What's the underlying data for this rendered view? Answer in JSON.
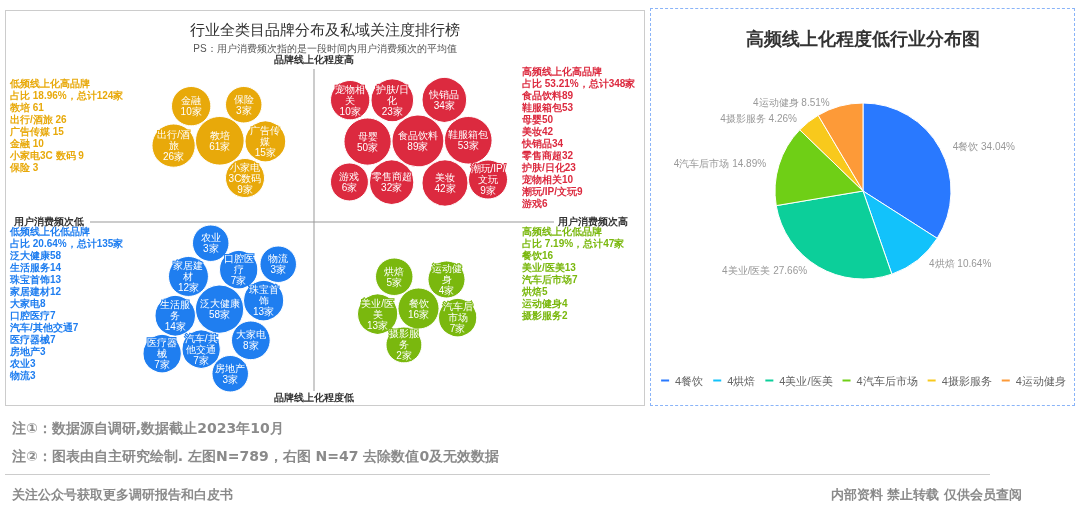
{
  "chart_data": [
    {
      "type": "other",
      "title": "行业全类目品牌分布及私域关注度排行榜",
      "subtitle": "PS：用户消费频次指的是一段时间内用户消费频次的平均值",
      "annotations": [
        "品牌线上化程度高",
        "品牌线上化程度低",
        "用户消费频次低",
        "用户消费频次高"
      ]
    },
    {
      "type": "other",
      "annotations": [
        "低频线上化高品牌",
        "占比 18.96%，总计124家",
        "教培 61",
        "出行/酒旅 26",
        "广告传媒 15",
        "金融 10",
        "小家电3C 数码 9",
        "保险 3"
      ],
      "categories": [
        "教培",
        "出行/酒旅",
        "广告传媒",
        "金融",
        "小家电3C数码",
        "保险"
      ],
      "series": [
        {
          "color": "#e8a90a",
          "values": [
            61,
            26,
            15,
            10,
            9,
            3
          ],
          "value_labels": [
            "61家",
            "26家",
            "15家",
            "10家",
            "9家",
            "3家"
          ]
        }
      ]
    },
    {
      "type": "other",
      "annotations": [
        "高频线上化高品牌",
        "占比 53.21%，总计348家",
        "食品饮料89",
        "鞋服箱包53",
        "母婴50",
        "美妆42",
        "快销品34",
        "零售商超32",
        "护肤/日化23",
        "宠物相关10",
        "潮玩/IP/文玩9",
        "游戏6"
      ],
      "categories": [
        "食品饮料",
        "鞋服箱包",
        "母婴",
        "美妆",
        "快销品",
        "零售商超",
        "护肤/日化",
        "宠物相关",
        "潮玩/IP/文玩",
        "游戏"
      ],
      "series": [
        {
          "color": "#dc2a3f",
          "values": [
            89,
            53,
            50,
            42,
            34,
            32,
            23,
            10,
            9,
            6
          ],
          "value_labels": [
            "89家",
            "53家",
            "50家",
            "42家",
            "34家",
            "32家",
            "23家",
            "10家",
            "9家",
            "6家"
          ]
        }
      ]
    },
    {
      "type": "other",
      "annotations": [
        "低频线上化低品牌",
        "占比 20.64%，总计135家",
        "泛大健康58",
        "生活服务14",
        "珠宝首饰13",
        "家居建材12",
        "大家电8",
        "口腔医疗7",
        "汽车/其他交通7",
        "医疗器械7",
        "房地产3",
        "农业3",
        "物流3"
      ],
      "categories": [
        "泛大健康",
        "生活服务",
        "珠宝首饰",
        "家居建材",
        "大家电",
        "口腔医疗",
        "汽车/其他交通",
        "医疗器械",
        "房地产",
        "农业",
        "物流"
      ],
      "series": [
        {
          "color": "#1f7ef0",
          "values": [
            58,
            14,
            13,
            12,
            8,
            7,
            7,
            7,
            3,
            3,
            3
          ],
          "value_labels": [
            "58家",
            "14家",
            "13家",
            "12家",
            "8家",
            "7家",
            "7家",
            "7家",
            "3家",
            "3家",
            "3家"
          ]
        }
      ]
    },
    {
      "type": "other",
      "annotations": [
        "高频线上化低品牌",
        "占比 7.19%，总计47家",
        "餐饮16",
        "美业/医美13",
        "汽车后市场7",
        "烘焙5",
        "运动健身4",
        "摄影服务2"
      ],
      "categories": [
        "餐饮",
        "美业/医美",
        "汽车后市场",
        "烘焙",
        "运动健身",
        "摄影服务"
      ],
      "series": [
        {
          "color": "#7ab80e",
          "values": [
            16,
            13,
            7,
            5,
            4,
            2
          ],
          "value_labels": [
            "16家",
            "13家",
            "7家",
            "5家",
            "4家",
            "2家"
          ]
        }
      ]
    },
    {
      "type": "pie",
      "title": "高频线上化程度低行业分布图",
      "categories": [
        "4餐饮",
        "4烘焙",
        "4美业/医美",
        "4汽车后市场",
        "4摄影服务",
        "4运动健身"
      ],
      "values": [
        34.04,
        10.64,
        27.66,
        14.89,
        4.26,
        8.51
      ],
      "value_labels": [
        "4餐饮 34.04%",
        "4烘焙 10.64%",
        "4美业/医美 27.66%",
        "4汽车后市场 14.89%",
        "4摄影服务 4.26%",
        "4运动健身 8.51%"
      ],
      "colors": [
        "#2979ff",
        "#12c2fb",
        "#0ccf9a",
        "#6fcf16",
        "#f8c91c",
        "#fd9a38"
      ],
      "legend": "bottom",
      "annotations": [
        "注①：数据源自调研,数据截止2023年10月",
        "注②：图表由自主研究绘制. 左图N=789，右图 N=47 去除数值0及无效数据",
        "关注公众号获取更多调研报告和白皮书",
        "内部资料 禁止转载 仅供会员查阅"
      ]
    }
  ]
}
